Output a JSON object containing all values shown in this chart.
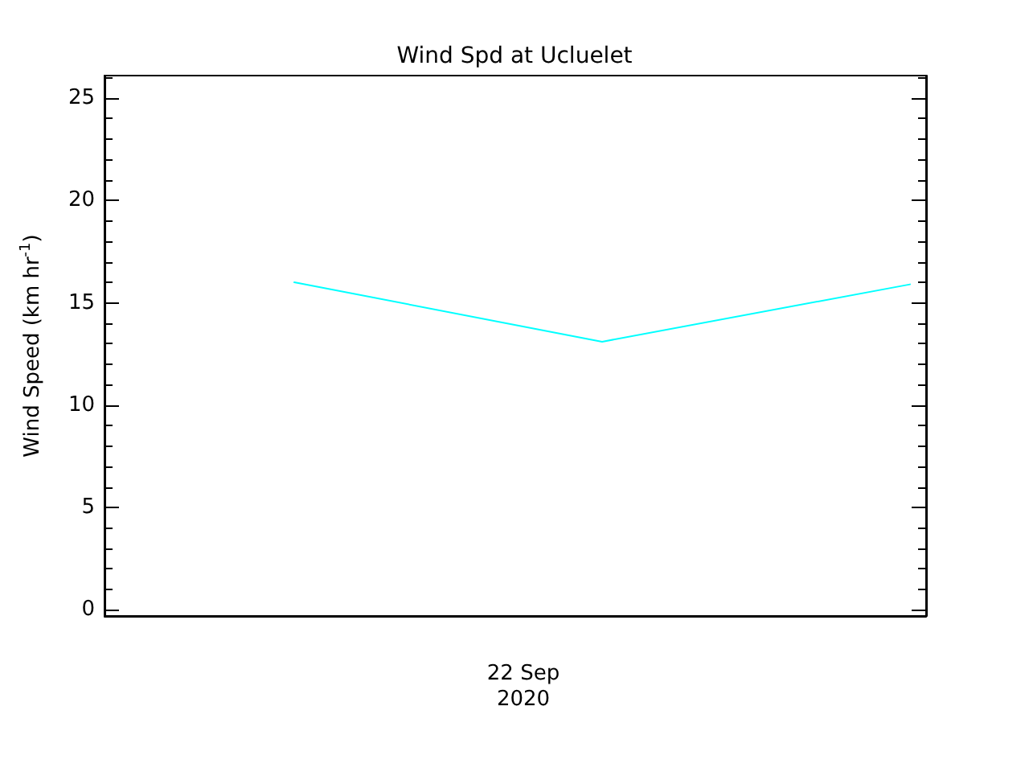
{
  "chart_data": {
    "type": "line",
    "title": "Wind Spd at Ucluelet",
    "ylabel": "Wind Speed (km hr$^{-1}$)",
    "categories": [
      null,
      null,
      null
    ],
    "series": [
      {
        "color": "#00ffff",
        "values": [
          16.0,
          13.1,
          15.9
        ]
      }
    ],
    "annotations": [
      "22 Sep\n2020"
    ],
    "ylim": [
      -0.3,
      26.1
    ],
    "yticks": [
      0,
      5,
      10,
      15,
      20,
      25
    ],
    "grid": false,
    "marker": "none",
    "line_style": "solid"
  }
}
